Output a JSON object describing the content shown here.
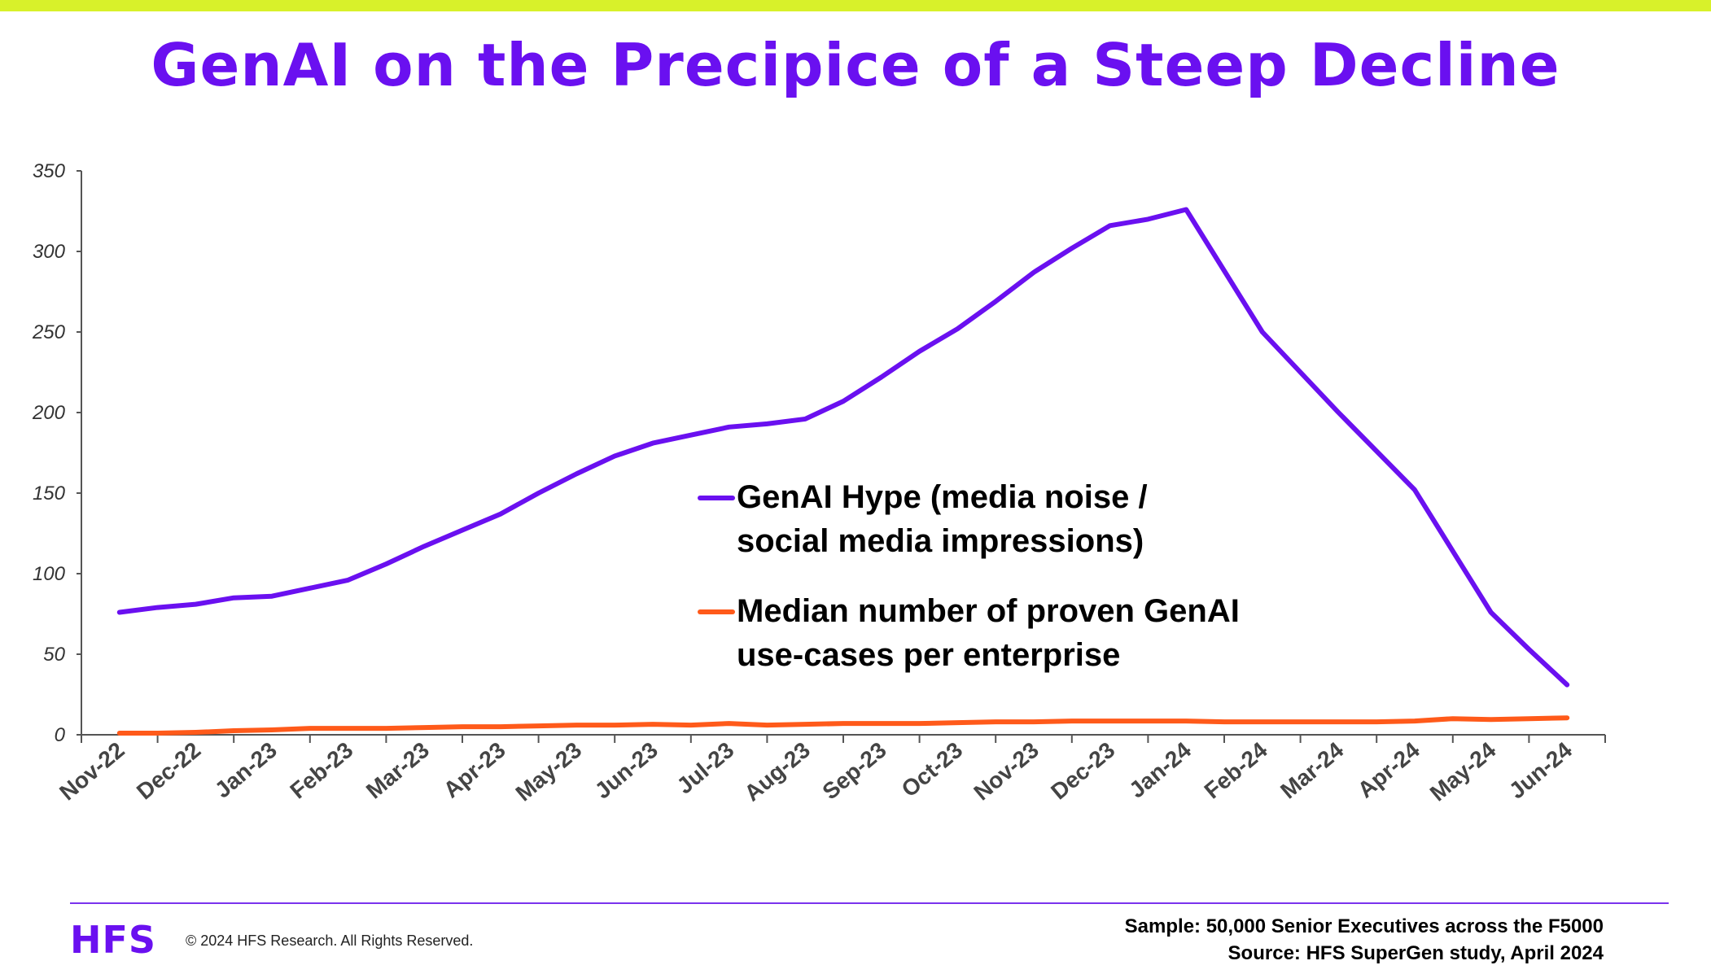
{
  "title": "GenAI on the Precipice of a Steep Decline",
  "colors": {
    "top_bar": "#d8f12a",
    "title": "#6a10f0",
    "hype": "#6a10f0",
    "use_cases": "#ff5a1a",
    "footer_line": "#7a33ee",
    "logo": "#6a10f0"
  },
  "chart_data": {
    "type": "line",
    "categories": [
      "Nov-22",
      "Dec-22",
      "Jan-23",
      "Feb-23",
      "Mar-23",
      "Apr-23",
      "May-23",
      "Jun-23",
      "Jul-23",
      "Aug-23",
      "Sep-23",
      "Oct-23",
      "Nov-23",
      "Dec-23",
      "Jan-24",
      "Feb-24",
      "Mar-24",
      "Apr-24",
      "May-24",
      "Jun-24"
    ],
    "ylim": [
      0,
      350
    ],
    "yticks": [
      "0",
      "50",
      "100",
      "150",
      "200",
      "250",
      "300",
      "350"
    ],
    "series": [
      {
        "name": "GenAI Hype (media noise / social media impressions)",
        "color": "#6a10f0",
        "x": [
          0,
          0.5,
          1,
          1.5,
          2,
          2.5,
          3,
          3.5,
          4,
          4.5,
          5,
          5.5,
          6,
          6.5,
          7,
          7.5,
          8,
          8.5,
          9,
          9.5,
          10,
          10.5,
          11,
          11.5,
          12,
          12.5,
          13,
          13.5,
          14,
          14.5,
          15,
          15.5,
          16,
          16.5,
          17,
          17.5,
          18,
          18.5,
          19
        ],
        "values": [
          76,
          79,
          81,
          85,
          86,
          91,
          96,
          106,
          117,
          127,
          137,
          150,
          162,
          173,
          181,
          186,
          191,
          193,
          196,
          207,
          222,
          238,
          252,
          269,
          287,
          302,
          316,
          320,
          326,
          288,
          250,
          225,
          200,
          176,
          152,
          114,
          76,
          53,
          31
        ]
      },
      {
        "name": "Median number of proven GenAI use-cases per enterprise",
        "color": "#ff5a1a",
        "x": [
          0,
          0.5,
          1,
          1.5,
          2,
          2.5,
          3,
          3.5,
          4,
          4.5,
          5,
          5.5,
          6,
          6.5,
          7,
          7.5,
          8,
          8.5,
          9,
          9.5,
          10,
          10.5,
          11,
          11.5,
          12,
          12.5,
          13,
          13.5,
          14,
          14.5,
          15,
          15.5,
          16,
          16.5,
          17,
          17.5,
          18,
          18.5,
          19
        ],
        "values": [
          1,
          1,
          1.5,
          2.5,
          3,
          4,
          4,
          4,
          4.5,
          5,
          5,
          5.5,
          6,
          6,
          6.5,
          6,
          7,
          6,
          6.5,
          7,
          7,
          7,
          7.5,
          8,
          8,
          8.5,
          8.5,
          8.5,
          8.5,
          8,
          8,
          8,
          8,
          8,
          8.5,
          10,
          9.5,
          10,
          10.5
        ]
      }
    ]
  },
  "footer": {
    "logo": "HFS",
    "copyright": "© 2024 HFS Research. All Rights Reserved.",
    "sample": "Sample: 50,000 Senior Executives across the F5000",
    "source": "Source: HFS SuperGen study, April 2024"
  }
}
